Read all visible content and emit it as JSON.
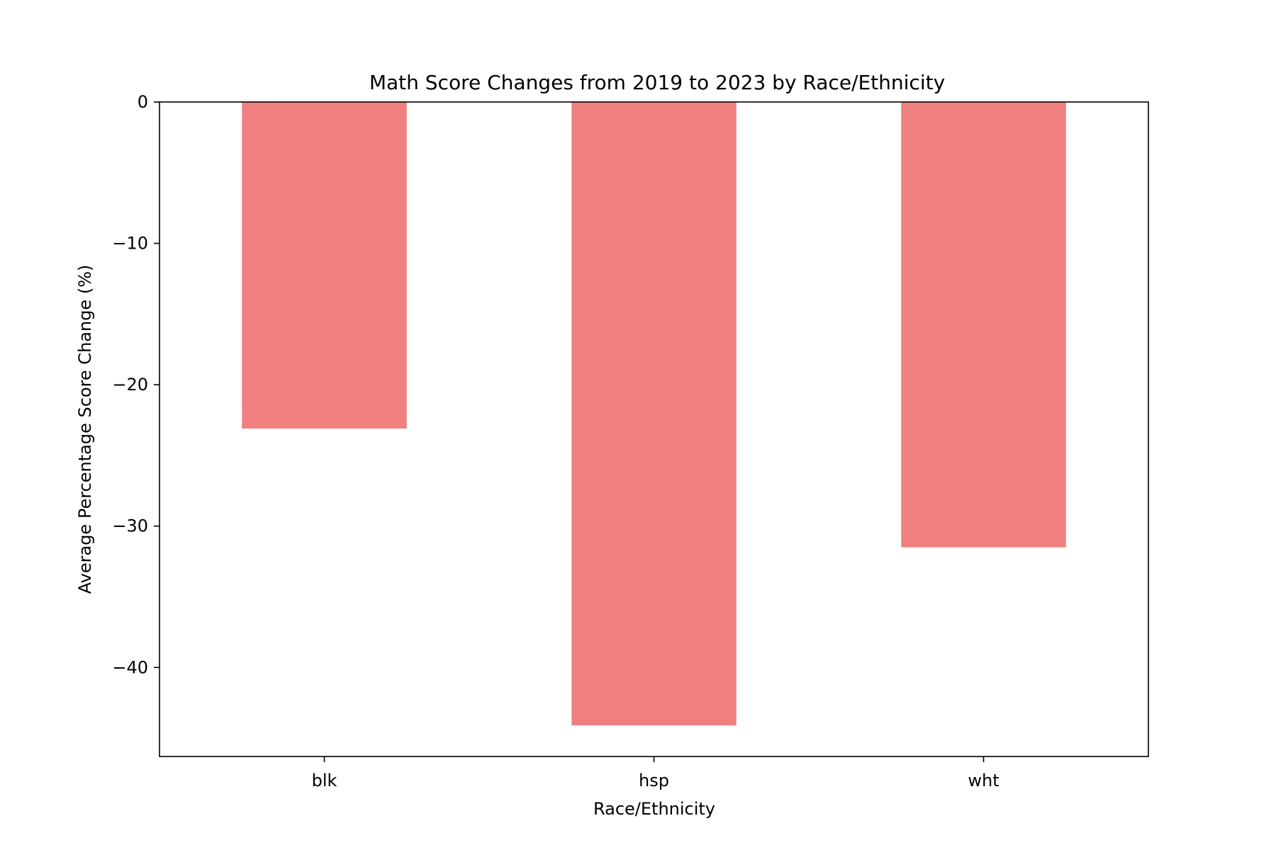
{
  "chart_data": {
    "type": "bar",
    "title": "Math Score Changes from 2019 to 2023 by Race/Ethnicity",
    "xlabel": "Race/Ethnicity",
    "ylabel": "Average Percentage Score Change (%)",
    "categories": [
      "blk",
      "hsp",
      "wht"
    ],
    "values": [
      -23.1,
      -44.1,
      -31.5
    ],
    "ylim": [
      -46.3,
      0
    ],
    "yticks": [
      0,
      -10,
      -20,
      -30,
      -40
    ],
    "ytick_labels": [
      "0",
      "−10",
      "−20",
      "−30",
      "−40"
    ],
    "grid": false,
    "legend": "none",
    "bar_color": "#f08080"
  }
}
